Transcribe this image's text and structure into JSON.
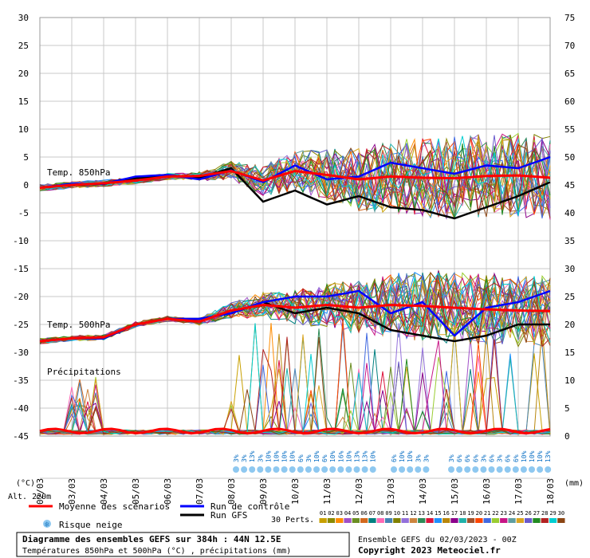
{
  "chart_data": {
    "type": "line",
    "title": "Diagramme des ensembles GEFS sur 384h : 44N 12.5E",
    "subtitle": "Températures 850hPa et 500hPa (°C) , précipitations (mm)",
    "run_info": "Ensemble GEFS du 02/03/2023 - 00Z",
    "copyright": "Copyright 2023 Meteociel.fr",
    "altitude": "Alt. 220m",
    "left_unit": "(°C)",
    "right_unit": "(mm)",
    "labels": {
      "t850": "Temp. 850hPa",
      "t500": "Temp. 500hPa",
      "precip": "Précipitations"
    },
    "left_axis": {
      "ticks": [
        30,
        25,
        20,
        15,
        10,
        5,
        0,
        -5,
        -10,
        -15,
        -20,
        -25,
        -30,
        -35,
        -40,
        -45
      ],
      "range": [
        -45,
        30
      ]
    },
    "right_axis": {
      "ticks": [
        75,
        70,
        65,
        60,
        55,
        50,
        45,
        40,
        35,
        30,
        25,
        20,
        15,
        10,
        5,
        0
      ],
      "range": [
        0,
        75
      ]
    },
    "x_dates": [
      "02/03",
      "03/03",
      "04/03",
      "05/03",
      "06/03",
      "07/03",
      "08/03",
      "09/03",
      "10/03",
      "11/03",
      "12/03",
      "13/03",
      "14/03",
      "15/03",
      "16/03",
      "17/03",
      "18/03"
    ],
    "mean_t850": [
      -0.5,
      0,
      0.3,
      0.8,
      1.5,
      1.6,
      2.5,
      0.8,
      2.5,
      1.8,
      1.0,
      1.5,
      1.3,
      1.2,
      1.6,
      1.7,
      1.3
    ],
    "mean_t500": [
      -28,
      -27.5,
      -27.3,
      -25,
      -24,
      -24.5,
      -22.5,
      -21.5,
      -22,
      -21.5,
      -22,
      -21.5,
      -21.7,
      -22,
      -22.3,
      -22.5,
      -22.6
    ],
    "control_t850": [
      -0.5,
      0.2,
      0.2,
      1.5,
      1.8,
      1.0,
      2.6,
      0.5,
      3.5,
      1.0,
      1.5,
      4.0,
      3.0,
      2.0,
      3.5,
      3.0,
      5.0
    ],
    "gfs_t850": [
      -0.5,
      0,
      0.2,
      1.2,
      1.7,
      1.3,
      3.0,
      -3.0,
      -1.0,
      -3.5,
      -2.0,
      -4.0,
      -4.5,
      -6.0,
      -4.0,
      -2.0,
      0.5
    ],
    "control_t500": [
      -28,
      -27.5,
      -27.5,
      -25,
      -24,
      -24,
      -23,
      -21,
      -20,
      -20,
      -19,
      -23,
      -21,
      -27,
      -22,
      -21,
      -19
    ],
    "gfs_t500": [
      -28,
      -27.5,
      -27.5,
      -25,
      -24,
      -24,
      -23,
      -21,
      -23,
      -22,
      -23,
      -26,
      -27,
      -28,
      -27,
      -25,
      -25
    ],
    "snow_risk": {
      "groups": [
        [
          "3%",
          "3%",
          "13%",
          "3%",
          "10%",
          "10%",
          "10%",
          "10%",
          "6%",
          "3%",
          "10%",
          "6%",
          "10%",
          "16%",
          "10%",
          "13%",
          "13%",
          "10%"
        ],
        [
          "6%",
          "10%",
          "10%",
          "3%",
          "3%"
        ],
        [
          "3%",
          "6%",
          "6%",
          "6%",
          "3%",
          "6%",
          "3%",
          "6%",
          "6%",
          "10%",
          "10%",
          "10%",
          "13%"
        ]
      ]
    },
    "legend": {
      "mean": {
        "label": "Moyenne des scénarios",
        "color": "#ff0000"
      },
      "control": {
        "label": "Run de contrôle",
        "color": "#0000ff"
      },
      "gfs": {
        "label": "Run GFS",
        "color": "#000000"
      },
      "snow": "Risque neige",
      "perts_label": "30 Perts.",
      "pert_numbers": [
        "01",
        "02",
        "03",
        "04",
        "05",
        "06",
        "07",
        "08",
        "09",
        "10",
        "11",
        "12",
        "13",
        "14",
        "15",
        "16",
        "17",
        "18",
        "19",
        "20",
        "21",
        "22",
        "23",
        "24",
        "25",
        "26",
        "27",
        "28",
        "29",
        "30"
      ],
      "pert_colors": [
        "#c8a000",
        "#8a8a00",
        "#ff8c00",
        "#a050c8",
        "#6b8e23",
        "#d2691e",
        "#008080",
        "#ff69b4",
        "#4682b4",
        "#808000",
        "#9370db",
        "#cd853f",
        "#2e8b57",
        "#dc143c",
        "#1e90ff",
        "#b8860b",
        "#8b008b",
        "#20b2aa",
        "#a0522d",
        "#ff4500",
        "#4169e1",
        "#9acd32",
        "#c71585",
        "#5f9ea0",
        "#daa520",
        "#6a5acd",
        "#228b22",
        "#b22222",
        "#00ced1",
        "#8b4513"
      ]
    }
  }
}
